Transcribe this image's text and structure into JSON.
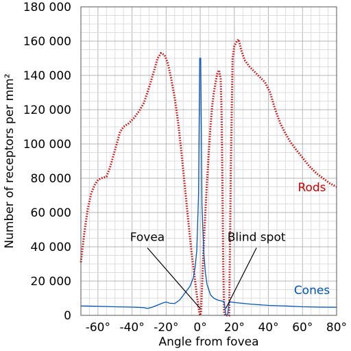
{
  "chart_data": {
    "type": "line",
    "xlabel": "Angle from fovea",
    "ylabel": "Number of receptors per mm²",
    "xlim": [
      -70,
      80
    ],
    "ylim": [
      0,
      180000
    ],
    "x_ticks": [
      {
        "value": -60,
        "label": "-60°"
      },
      {
        "value": -40,
        "label": "-40°"
      },
      {
        "value": -20,
        "label": "-20°"
      },
      {
        "value": 0,
        "label": "0°"
      },
      {
        "value": 20,
        "label": "20°"
      },
      {
        "value": 40,
        "label": "40°"
      },
      {
        "value": 60,
        "label": "60°"
      },
      {
        "value": 80,
        "label": "80°"
      }
    ],
    "y_ticks": [
      {
        "value": 0,
        "label": "0"
      },
      {
        "value": 20000,
        "label": "20 000"
      },
      {
        "value": 40000,
        "label": "40 000"
      },
      {
        "value": 60000,
        "label": "60 000"
      },
      {
        "value": 80000,
        "label": "80 000"
      },
      {
        "value": 100000,
        "label": "100 000"
      },
      {
        "value": 120000,
        "label": "120 000"
      },
      {
        "value": 140000,
        "label": "140 000"
      },
      {
        "value": 160000,
        "label": "160 000"
      },
      {
        "value": 180000,
        "label": "180 000"
      }
    ],
    "grid": true,
    "minor_step_x": 5,
    "minor_step_y": 5000,
    "series": [
      {
        "name": "Rods",
        "color": "#cc0000",
        "style": "dotted",
        "points": [
          [
            -70,
            31000
          ],
          [
            -68,
            48000
          ],
          [
            -66,
            62000
          ],
          [
            -64,
            71000
          ],
          [
            -62,
            76000
          ],
          [
            -60,
            79000
          ],
          [
            -58,
            80000
          ],
          [
            -55,
            81000
          ],
          [
            -53,
            86000
          ],
          [
            -51,
            93000
          ],
          [
            -49,
            100000
          ],
          [
            -47,
            107000
          ],
          [
            -45,
            110000
          ],
          [
            -42,
            112000
          ],
          [
            -39,
            115000
          ],
          [
            -36,
            119000
          ],
          [
            -33,
            124000
          ],
          [
            -30,
            133000
          ],
          [
            -27,
            143000
          ],
          [
            -25,
            150000
          ],
          [
            -23,
            153000
          ],
          [
            -21,
            152000
          ],
          [
            -19,
            147000
          ],
          [
            -17,
            138000
          ],
          [
            -15,
            127000
          ],
          [
            -13,
            113000
          ],
          [
            -11,
            95000
          ],
          [
            -9,
            75000
          ],
          [
            -7,
            55000
          ],
          [
            -5,
            36000
          ],
          [
            -3,
            20000
          ],
          [
            -2,
            12000
          ],
          [
            -1,
            5000
          ],
          [
            -0.5,
            1500
          ],
          [
            0,
            0
          ],
          [
            0.5,
            2000
          ],
          [
            1,
            15000
          ],
          [
            2,
            40000
          ],
          [
            3,
            60000
          ],
          [
            4,
            78000
          ],
          [
            5,
            95000
          ],
          [
            6,
            110000
          ],
          [
            7,
            122000
          ],
          [
            8,
            130000
          ],
          [
            9,
            136000
          ],
          [
            10,
            141000
          ],
          [
            11,
            143000
          ],
          [
            12,
            138000
          ],
          [
            12.5,
            120000
          ],
          [
            13,
            80000
          ],
          [
            13.5,
            30000
          ],
          [
            14,
            2000
          ],
          [
            14.5,
            0
          ],
          [
            17,
            0
          ],
          [
            18,
            90000
          ],
          [
            19,
            150000
          ],
          [
            20,
            157000
          ],
          [
            21.5,
            160000
          ],
          [
            22.5,
            161000
          ],
          [
            24,
            155000
          ],
          [
            26,
            149000
          ],
          [
            29,
            145000
          ],
          [
            32,
            142000
          ],
          [
            35,
            139000
          ],
          [
            38,
            136000
          ],
          [
            41,
            130000
          ],
          [
            44,
            120000
          ],
          [
            47,
            112000
          ],
          [
            50,
            106000
          ],
          [
            53,
            101000
          ],
          [
            56,
            97000
          ],
          [
            60,
            92000
          ],
          [
            64,
            87000
          ],
          [
            68,
            83000
          ],
          [
            72,
            80000
          ],
          [
            76,
            77000
          ],
          [
            80,
            75000
          ]
        ],
        "label": "Rods"
      },
      {
        "name": "Cones",
        "color": "#0055b8",
        "style": "solid",
        "points": [
          [
            -70,
            5500
          ],
          [
            -60,
            5300
          ],
          [
            -50,
            5000
          ],
          [
            -40,
            4800
          ],
          [
            -33,
            4500
          ],
          [
            -31,
            4000
          ],
          [
            -28,
            4800
          ],
          [
            -25,
            6000
          ],
          [
            -22,
            7200
          ],
          [
            -20,
            7800
          ],
          [
            -18,
            7100
          ],
          [
            -15,
            6900
          ],
          [
            -12,
            9000
          ],
          [
            -9,
            13000
          ],
          [
            -6,
            17000
          ],
          [
            -4,
            22000
          ],
          [
            -3,
            28000
          ],
          [
            -2,
            38000
          ],
          [
            -1,
            70000
          ],
          [
            -0.3,
            150000
          ],
          [
            0.3,
            150000
          ],
          [
            1,
            65000
          ],
          [
            2,
            38000
          ],
          [
            3,
            25000
          ],
          [
            4,
            18000
          ],
          [
            6,
            12000
          ],
          [
            8,
            10000
          ],
          [
            10,
            9000
          ],
          [
            12,
            8500
          ],
          [
            14,
            8000
          ],
          [
            15,
            0
          ],
          [
            16,
            0
          ],
          [
            17,
            8000
          ],
          [
            20,
            7500
          ],
          [
            30,
            6500
          ],
          [
            40,
            5800
          ],
          [
            50,
            5500
          ],
          [
            60,
            5000
          ],
          [
            70,
            4800
          ],
          [
            80,
            4700
          ]
        ],
        "label": "Cones"
      }
    ],
    "annotations": [
      {
        "text": "Fovea",
        "anchor_x": -31,
        "anchor_y": 41000,
        "target_x": 0,
        "target_y": 4000
      },
      {
        "text": "Blind spot",
        "anchor_x": 33,
        "anchor_y": 41000,
        "target_x": 15,
        "target_y": 4000
      }
    ]
  }
}
